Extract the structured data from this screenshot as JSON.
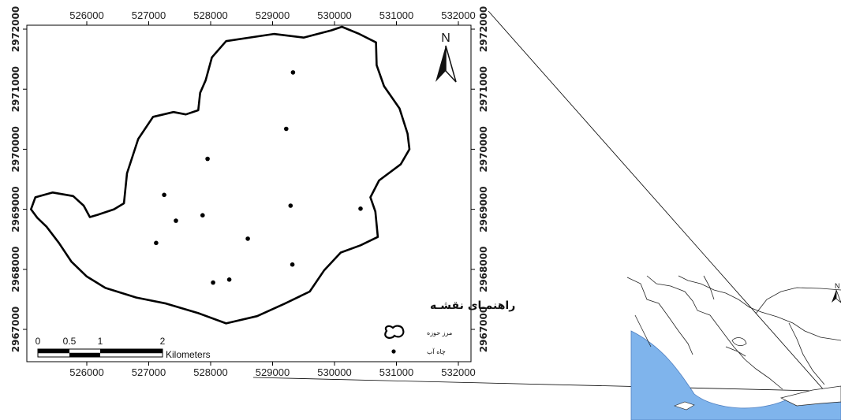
{
  "map": {
    "x_ticks": [
      "526000",
      "527000",
      "528000",
      "529000",
      "530000",
      "531000",
      "532000"
    ],
    "y_ticks": [
      "2972000",
      "2971000",
      "2970000",
      "2969000",
      "2968000",
      "2967000"
    ],
    "north_label": "N",
    "legend": {
      "title": "راهنمـای نقشـه",
      "items": [
        {
          "label": "مرز حوزه",
          "symbol": "boundary"
        },
        {
          "label": "چاه آب",
          "symbol": "dot"
        }
      ]
    },
    "scale_bar": {
      "labels": [
        "0",
        "0.5",
        "1",
        "2"
      ],
      "unit": "Kilometers"
    },
    "wells": [
      {
        "x": 529330,
        "y": 2971280
      },
      {
        "x": 529220,
        "y": 2970340
      },
      {
        "x": 527950,
        "y": 2969840
      },
      {
        "x": 527250,
        "y": 2969240
      },
      {
        "x": 529290,
        "y": 2969060
      },
      {
        "x": 530420,
        "y": 2969010
      },
      {
        "x": 527870,
        "y": 2968900
      },
      {
        "x": 527440,
        "y": 2968810
      },
      {
        "x": 528600,
        "y": 2968510
      },
      {
        "x": 527120,
        "y": 2968440
      },
      {
        "x": 529320,
        "y": 2968080
      },
      {
        "x": 528300,
        "y": 2967830
      },
      {
        "x": 528040,
        "y": 2967780
      }
    ],
    "boundary": [
      [
        525170,
        2969200
      ],
      [
        525450,
        2969280
      ],
      [
        525780,
        2969220
      ],
      [
        525950,
        2969060
      ],
      [
        526050,
        2968870
      ],
      [
        526180,
        2968910
      ],
      [
        526440,
        2969000
      ],
      [
        526600,
        2969100
      ],
      [
        526650,
        2969600
      ],
      [
        526830,
        2970170
      ],
      [
        527070,
        2970540
      ],
      [
        527400,
        2970620
      ],
      [
        527600,
        2970580
      ],
      [
        527800,
        2970650
      ],
      [
        527830,
        2970940
      ],
      [
        527920,
        2971150
      ],
      [
        528020,
        2971530
      ],
      [
        528250,
        2971800
      ],
      [
        528700,
        2971870
      ],
      [
        529020,
        2971920
      ],
      [
        529500,
        2971860
      ],
      [
        529950,
        2971980
      ],
      [
        530120,
        2972040
      ],
      [
        530400,
        2971920
      ],
      [
        530670,
        2971780
      ],
      [
        530680,
        2971400
      ],
      [
        530800,
        2971050
      ],
      [
        531050,
        2970680
      ],
      [
        531180,
        2970260
      ],
      [
        531210,
        2970000
      ],
      [
        531070,
        2969750
      ],
      [
        530720,
        2969480
      ],
      [
        530580,
        2969200
      ],
      [
        530660,
        2968960
      ],
      [
        530700,
        2968540
      ],
      [
        530420,
        2968400
      ],
      [
        530100,
        2968280
      ],
      [
        529830,
        2967980
      ],
      [
        529600,
        2967630
      ],
      [
        529200,
        2967430
      ],
      [
        528750,
        2967220
      ],
      [
        528250,
        2967100
      ],
      [
        527800,
        2967270
      ],
      [
        527280,
        2967430
      ],
      [
        526800,
        2967530
      ],
      [
        526300,
        2967690
      ],
      [
        526000,
        2967880
      ],
      [
        525750,
        2968130
      ],
      [
        525550,
        2968440
      ],
      [
        525350,
        2968710
      ],
      [
        525200,
        2968860
      ],
      [
        525100,
        2969000
      ],
      [
        525170,
        2969200
      ]
    ]
  }
}
